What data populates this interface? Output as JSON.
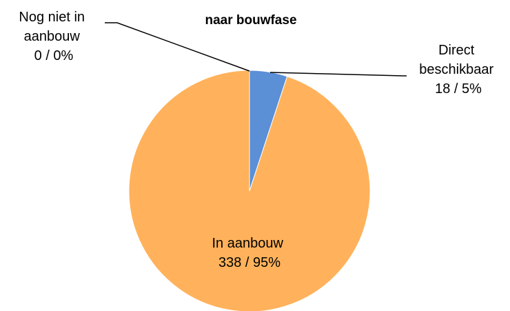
{
  "chart_data": {
    "type": "pie",
    "title": "naar bouwfase",
    "slices": [
      {
        "label_lines": [
          "Direct",
          "beschikbaar",
          "18 / 5%"
        ],
        "category": "Direct beschikbaar",
        "count": 18,
        "percent_label": "5%",
        "color": "#5B8FD6"
      },
      {
        "label_lines": [
          "In aanbouw",
          "338 / 95%"
        ],
        "category": "In aanbouw",
        "count": 338,
        "percent_label": "95%",
        "color": "#FFB25B"
      },
      {
        "label_lines": [
          "Nog niet in",
          "aanbouw",
          "0 / 0%"
        ],
        "category": "Nog niet in aanbouw",
        "count": 0,
        "percent_label": "0%",
        "color": "#A5A5A5"
      }
    ]
  }
}
